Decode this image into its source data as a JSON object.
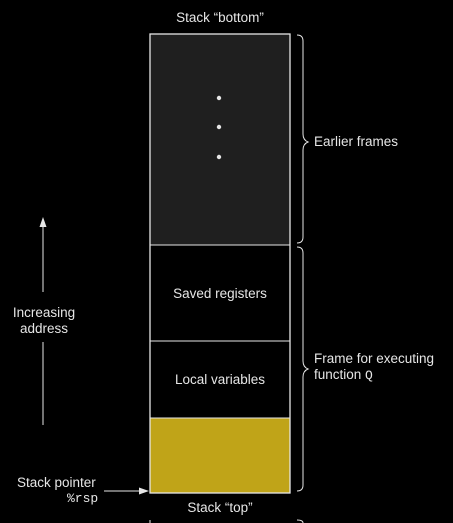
{
  "labels": {
    "stack_bottom": "Stack “bottom”",
    "stack_top": "Stack “top”",
    "earlier_frames": "Earlier frames",
    "frame_line1": "Frame for executing",
    "frame_line2_prefix": "function ",
    "frame_function": "Q",
    "increasing_line1": "Increasing",
    "increasing_line2": "address",
    "stack_pointer": "Stack pointer",
    "rsp": "%rsp"
  },
  "blocks": {
    "saved_registers": "Saved registers",
    "local_variables": "Local variables"
  },
  "colors": {
    "background": "#000000",
    "earlier_frames_fill": "#1f1f1f",
    "frame_fill": "#000000",
    "top_block_fill": "#c0a418",
    "line": "#e6e6e6"
  }
}
